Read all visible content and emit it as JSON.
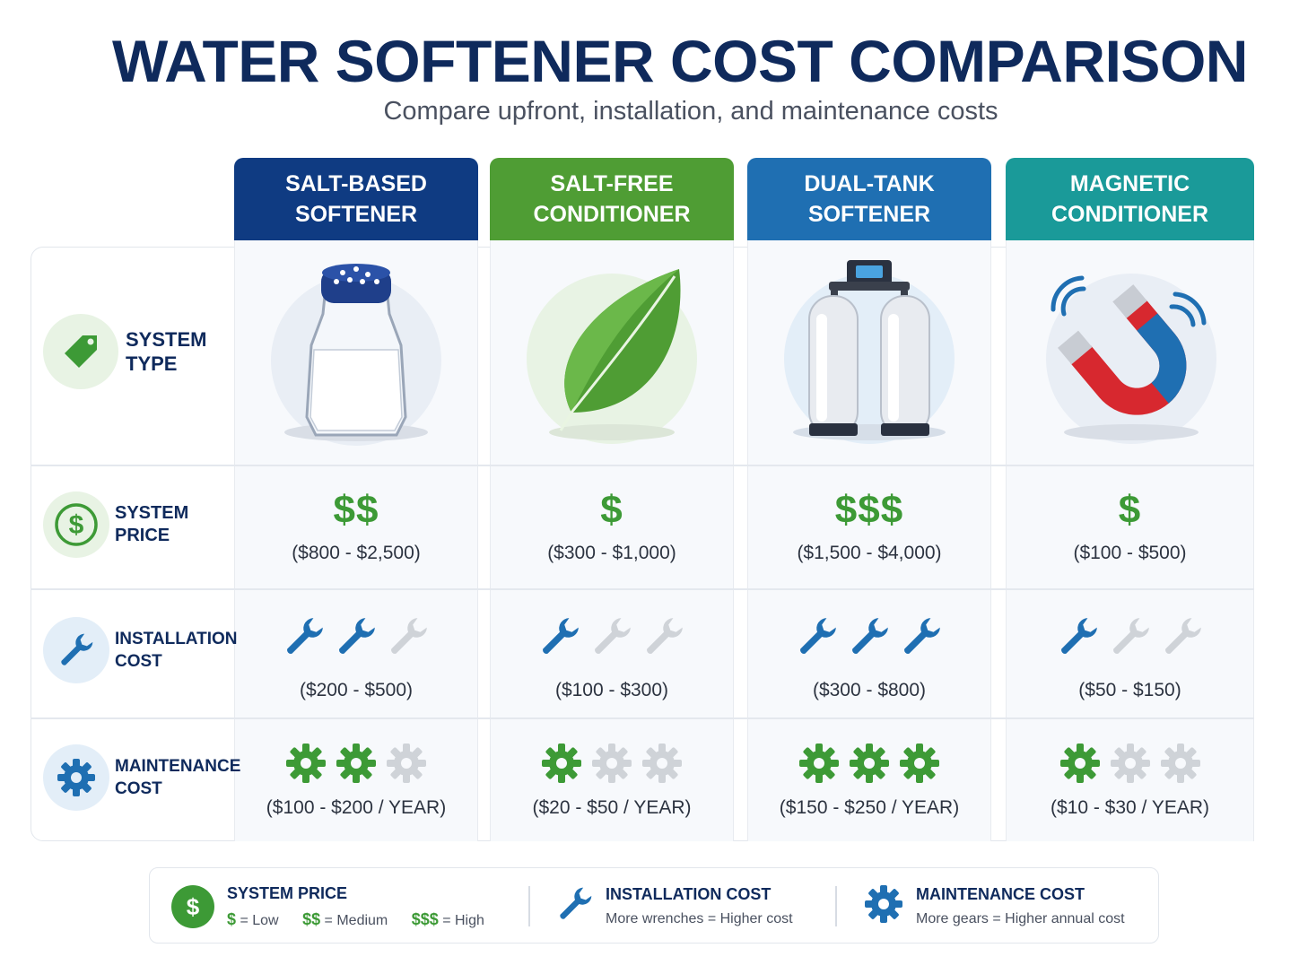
{
  "title": "WATER SOFTENER COST COMPARISON",
  "subtitle": "Compare upfront, installation, and maintenance costs",
  "colors": {
    "navy": "#0f3b82",
    "green": "#4f9d34",
    "blue": "#1f6fb2",
    "teal": "#1a9a99",
    "wrench": "#1f6fb2",
    "gear": "#3d9a36",
    "inactive": "#cfd3d8"
  },
  "columns": [
    {
      "name": "SALT-BASED\nSOFTENER",
      "icon": "salt-shaker-icon",
      "price_symbol": "$$",
      "price_range": "($800 - $2,500)",
      "install_level": 2,
      "install_range": "($200 - $500)",
      "maint_level": 2,
      "maint_range": "($100 - $200 / YEAR)"
    },
    {
      "name": "SALT-FREE\nCONDITIONER",
      "icon": "leaf-icon",
      "price_symbol": "$",
      "price_range": "($300 - $1,000)",
      "install_level": 1,
      "install_range": "($100 - $300)",
      "maint_level": 1,
      "maint_range": "($20 - $50 / YEAR)"
    },
    {
      "name": "DUAL-TANK\nSOFTENER",
      "icon": "dual-tank-icon",
      "price_symbol": "$$$",
      "price_range": "($1,500 - $4,000)",
      "install_level": 3,
      "install_range": "($300 - $800)",
      "maint_level": 3,
      "maint_range": "($150 - $250 / YEAR)"
    },
    {
      "name": "MAGNETIC\nCONDITIONER",
      "icon": "magnet-icon",
      "price_symbol": "$",
      "price_range": "($100 - $500)",
      "install_level": 1,
      "install_range": "($50 - $150)",
      "maint_level": 1,
      "maint_range": "($10 - $30 / YEAR)"
    }
  ],
  "rows": {
    "system_type": "SYSTEM\nTYPE",
    "system_price": "SYSTEM\nPRICE",
    "installation_cost": "INSTALLATION\nCOST",
    "maintenance_cost": "MAINTENANCE\nCOST"
  },
  "legend": {
    "price_title": "SYSTEM PRICE",
    "price_low_sym": "$",
    "price_low": "= Low",
    "price_med_sym": "$$",
    "price_med": "= Medium",
    "price_high_sym": "$$$",
    "price_high": "= High",
    "install_title": "INSTALLATION COST",
    "install_sub": "More wrenches = Higher cost",
    "maint_title": "MAINTENANCE COST",
    "maint_sub": "More gears = Higher annual cost"
  }
}
